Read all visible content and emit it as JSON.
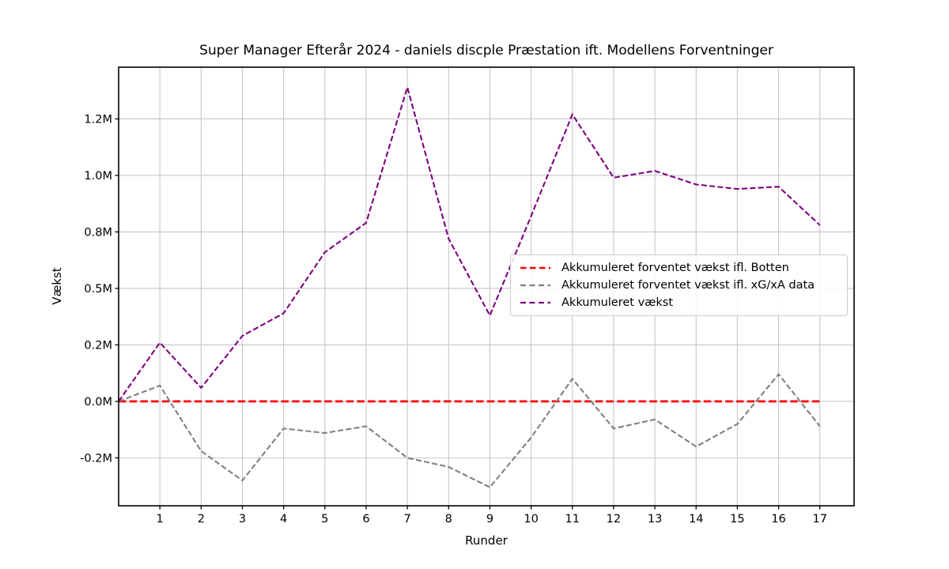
{
  "figure": {
    "title": "Super Manager Efterår 2024 - daniels discple Præstation ift. Modellens Forventninger"
  },
  "chart_data": {
    "type": "line",
    "title": "Super Manager Efterår 2024 - daniels discple Præstation ift. Modellens Forventninger",
    "xlabel": "Runder",
    "ylabel": "Vækst",
    "unit": "millions (M)",
    "grid": true,
    "legend_position": "center right",
    "background_color": "#ffffff",
    "grid_color": "#c6c6c6",
    "spine_color": "#000000",
    "xlim": [
      0,
      17.83
    ],
    "ylim": [
      -0.462,
      1.479
    ],
    "x": [
      0,
      1,
      2,
      3,
      4,
      5,
      6,
      7,
      8,
      9,
      10,
      11,
      12,
      13,
      14,
      15,
      16,
      17
    ],
    "xticks": [
      1,
      2,
      3,
      4,
      5,
      6,
      7,
      8,
      9,
      10,
      11,
      12,
      13,
      14,
      15,
      16,
      17
    ],
    "yticks": [
      {
        "value": 1.25,
        "label": "1.2M"
      },
      {
        "value": 1.0,
        "label": "1.0M"
      },
      {
        "value": 0.75,
        "label": "0.8M"
      },
      {
        "value": 0.5,
        "label": "0.5M"
      },
      {
        "value": 0.25,
        "label": "0.2M"
      },
      {
        "value": 0.0,
        "label": "0.0M"
      },
      {
        "value": -0.25,
        "label": "-0.2M"
      }
    ],
    "series": [
      {
        "name": "Akkumuleret forventet vækst ifl. Botten",
        "color": "#ff0000",
        "style": "dashed",
        "line_width": 2.8,
        "values": [
          0,
          0,
          0,
          0,
          0,
          0,
          0,
          0,
          0,
          0,
          0,
          0,
          0,
          0,
          0,
          0,
          0,
          0
        ]
      },
      {
        "name": "Akkumuleret forventet vækst ifl. xG/xA data",
        "color": "#808080",
        "style": "dashed",
        "line_width": 2.1,
        "values": [
          0,
          0.07,
          -0.22,
          -0.35,
          -0.12,
          -0.14,
          -0.11,
          -0.25,
          -0.29,
          -0.38,
          -0.16,
          0.1,
          -0.12,
          -0.08,
          -0.2,
          -0.1,
          0.12,
          -0.11
        ]
      },
      {
        "name": "Akkumuleret vækst",
        "color": "#800080",
        "style": "dashed",
        "line_width": 2.1,
        "values": [
          0,
          0.26,
          0.06,
          0.29,
          0.39,
          0.66,
          0.79,
          1.39,
          0.72,
          0.38,
          0.82,
          1.27,
          0.99,
          1.02,
          0.96,
          0.94,
          0.95,
          0.78
        ]
      }
    ]
  }
}
